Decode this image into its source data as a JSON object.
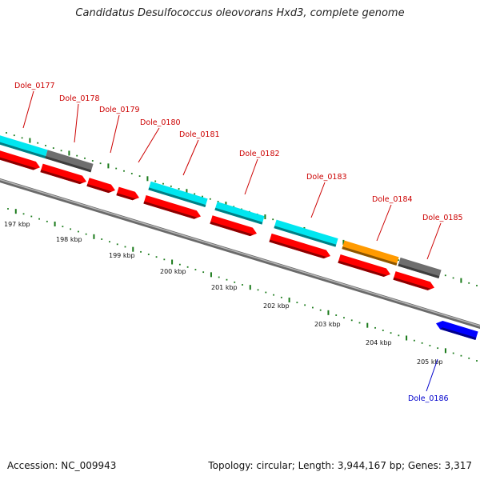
{
  "title": "Candidatus Desulfococcus oleovorans Hxd3, complete genome",
  "footer": {
    "accession": "Accession: NC_009943",
    "topology": "Topology: circular; Length: 3,944,167 bp; Genes: 3,317"
  },
  "colors": {
    "label_default": "#cc0000",
    "label_reverse": "#0000cc",
    "backbone": "#8a8a8a",
    "tick": "#1a7a1a",
    "cyan": "#00e6f0",
    "gray": "#6e6e6e",
    "orange": "#ff9a00",
    "red": "#ff0000",
    "blue": "#0000ff"
  },
  "axis": {
    "tick_labels": [
      "197 kbp",
      "198 kbp",
      "199 kbp",
      "200 kbp",
      "201 kbp",
      "202 kbp",
      "203 kbp",
      "204 kbp",
      "205 kbp"
    ]
  },
  "genes": [
    {
      "name": "Dole_0177",
      "label_color": "#cc0000"
    },
    {
      "name": "Dole_0178",
      "label_color": "#cc0000"
    },
    {
      "name": "Dole_0179",
      "label_color": "#cc0000"
    },
    {
      "name": "Dole_0180",
      "label_color": "#cc0000"
    },
    {
      "name": "Dole_0181",
      "label_color": "#cc0000"
    },
    {
      "name": "Dole_0182",
      "label_color": "#cc0000"
    },
    {
      "name": "Dole_0183",
      "label_color": "#cc0000"
    },
    {
      "name": "Dole_0184",
      "label_color": "#cc0000"
    },
    {
      "name": "Dole_0185",
      "label_color": "#cc0000"
    },
    {
      "name": "Dole_0186",
      "label_color": "#0000cc"
    }
  ],
  "features": {
    "top_track": [
      {
        "color": "cyan"
      },
      {
        "color": "gray"
      },
      {
        "color": "cyan"
      },
      {
        "color": "cyan"
      },
      {
        "color": "cyan"
      },
      {
        "color": "orange"
      },
      {
        "color": "gray"
      }
    ],
    "red_track": [
      {
        "color": "red"
      },
      {
        "color": "red"
      },
      {
        "color": "red"
      },
      {
        "color": "red"
      },
      {
        "color": "red"
      },
      {
        "color": "red"
      },
      {
        "color": "red"
      },
      {
        "color": "red"
      },
      {
        "color": "red"
      }
    ],
    "reverse_track": [
      {
        "color": "blue"
      }
    ]
  }
}
